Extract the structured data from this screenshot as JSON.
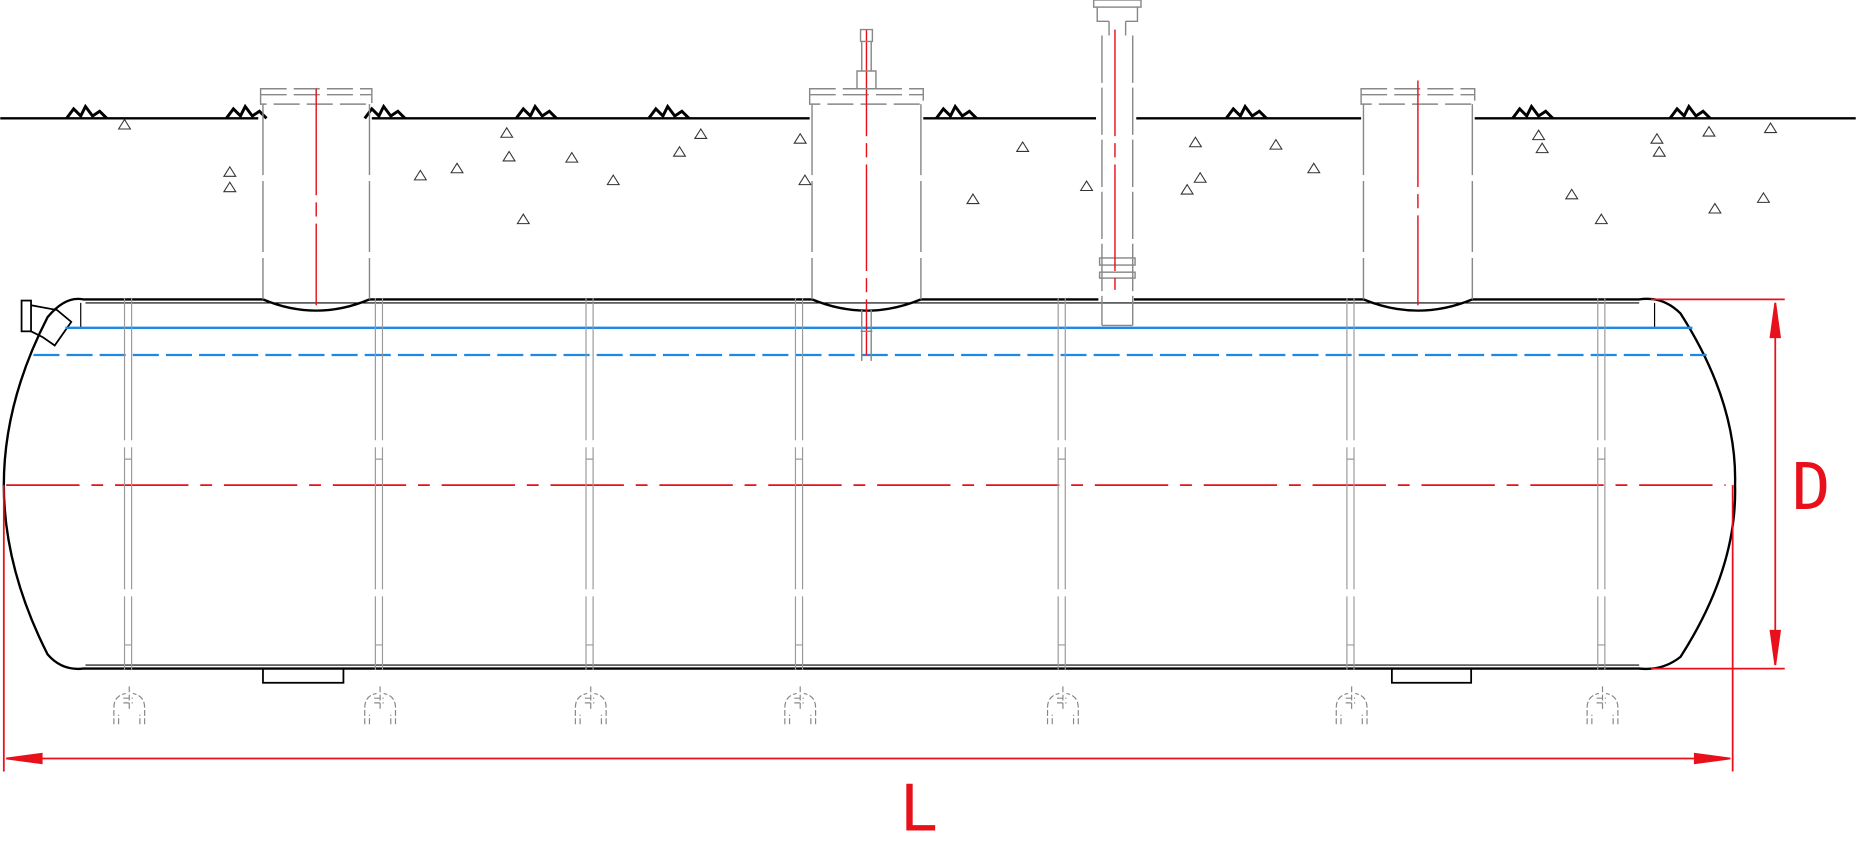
{
  "drawing": {
    "dimensions": {
      "diameter_label": "D",
      "length_label": "L"
    },
    "colors": {
      "outline": "#000000",
      "hidden_lines": "#9a9a9a",
      "centerline": "#e8101a",
      "dimension": "#e8101a",
      "liquid_level": "#1e88e5"
    }
  }
}
